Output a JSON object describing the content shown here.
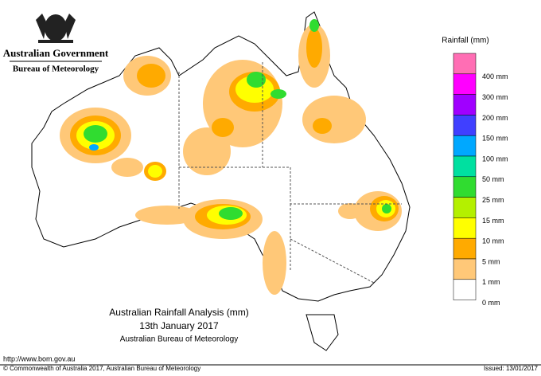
{
  "header": {
    "agency": "Australian Government",
    "bureau": "Bureau of Meteorology"
  },
  "legend": {
    "title": "Rainfall (mm)",
    "top_color": "#ff6eb4",
    "items": [
      {
        "label": "400 mm",
        "color": "#ff00ff"
      },
      {
        "label": "300 mm",
        "color": "#a000ff"
      },
      {
        "label": "200 mm",
        "color": "#4040ff"
      },
      {
        "label": "150 mm",
        "color": "#00a8ff"
      },
      {
        "label": "100 mm",
        "color": "#00e0a0"
      },
      {
        "label": "50 mm",
        "color": "#30dc30"
      },
      {
        "label": "25 mm",
        "color": "#b4f000"
      },
      {
        "label": "15 mm",
        "color": "#ffff00"
      },
      {
        "label": "10 mm",
        "color": "#ffaa00"
      },
      {
        "label": "5 mm",
        "color": "#ffc878"
      },
      {
        "label": "1 mm",
        "color": "#ffffff"
      },
      {
        "label": "0 mm",
        "color": null
      }
    ]
  },
  "caption": {
    "title": "Australian Rainfall Analysis (mm)",
    "date": "13th January 2017",
    "source": "Australian Bureau of Meteorology"
  },
  "footer": {
    "url": "http://www.bom.gov.au",
    "copyright": "© Commonwealth of Australia 2017, Australian Bureau of Meteorology",
    "issued": "Issued: 13/01/2017"
  }
}
